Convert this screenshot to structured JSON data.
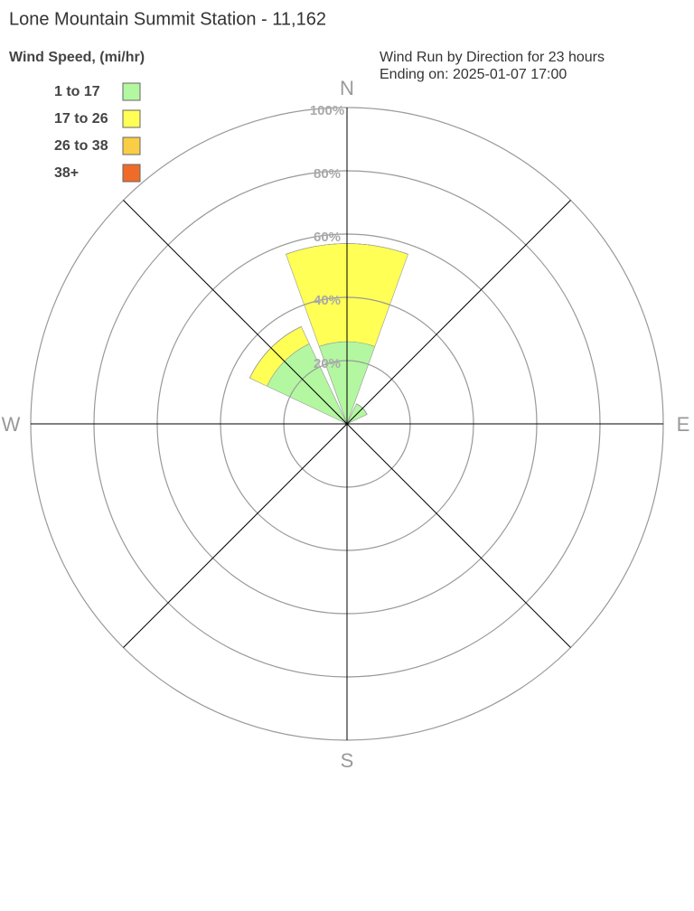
{
  "chart_data": {
    "type": "windrose",
    "title": "Lone Mountain Summit Station - 11,162",
    "legend_title": "Wind Speed, (mi/hr)",
    "subtitle": [
      "Wind Run by Direction for 23 hours",
      "Ending on: 2025-01-07 17:00"
    ],
    "categories": [
      "N",
      null,
      "E",
      null,
      "S",
      null,
      "W",
      null
    ],
    "series": [
      {
        "name": "1 to 17",
        "color": "#b3f7a1",
        "values": [
          26,
          7,
          0,
          0,
          0,
          0,
          0,
          28
        ]
      },
      {
        "name": "17 to 26",
        "color": "#ffff55",
        "values": [
          31,
          0,
          0,
          0,
          0,
          0,
          0,
          6
        ]
      },
      {
        "name": "26 to 38",
        "color": "#f9cd45",
        "values": [
          0,
          0,
          0,
          0,
          0,
          0,
          0,
          0
        ]
      },
      {
        "name": "38+",
        "color": "#ef6c28",
        "values": [
          0,
          0,
          0,
          0,
          0,
          0,
          0,
          0
        ]
      }
    ],
    "rlim": [
      0,
      100
    ],
    "rticks": [
      {
        "value": 20,
        "label": "20%"
      },
      {
        "value": 40,
        "label": "40%"
      },
      {
        "value": 60,
        "label": "60%"
      },
      {
        "value": 80,
        "label": "80%"
      },
      {
        "value": 100,
        "label": "100%"
      }
    ],
    "grid": true
  }
}
